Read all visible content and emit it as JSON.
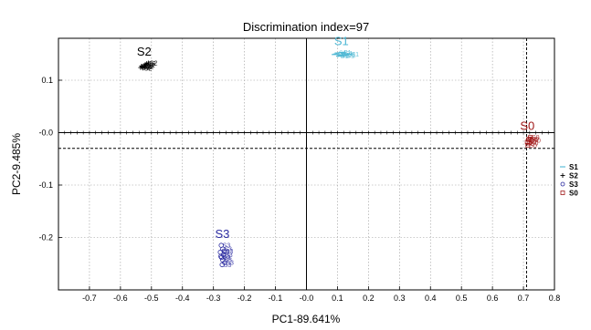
{
  "chart_data": {
    "type": "scatter",
    "title": "Discrimination index=97",
    "xlabel": "PC1-89.641%",
    "ylabel": "PC2-9.485%",
    "xlim": [
      -0.8,
      0.8
    ],
    "ylim": [
      -0.3,
      0.18
    ],
    "x_ticks": [
      "-0.7",
      "-0.6",
      "-0.5",
      "-0.4",
      "-0.3",
      "-0.2",
      "-0.1",
      "-0.0",
      "0.1",
      "0.2",
      "0.3",
      "0.4",
      "0.5",
      "0.6",
      "0.7",
      "0.8"
    ],
    "x_tick_values": [
      -0.7,
      -0.6,
      -0.5,
      -0.4,
      -0.3,
      -0.2,
      -0.1,
      0.0,
      0.1,
      0.2,
      0.3,
      0.4,
      0.5,
      0.6,
      0.7,
      0.8
    ],
    "y_ticks": [
      "0.1",
      "-0.0",
      "-0.1",
      "-0.2"
    ],
    "y_tick_values": [
      0.1,
      0.0,
      -0.1,
      -0.2
    ],
    "grid": true,
    "legend_position": "right",
    "reference_lines": {
      "x": 0.71,
      "y": -0.03
    },
    "series": [
      {
        "name": "S1",
        "marker": "-",
        "label": "S1",
        "color": "#4fb8d4",
        "points": [
          [
            0.09,
            0.149
          ],
          [
            0.1,
            0.152
          ],
          [
            0.11,
            0.148
          ],
          [
            0.12,
            0.151
          ],
          [
            0.13,
            0.149
          ],
          [
            0.105,
            0.146
          ],
          [
            0.115,
            0.153
          ],
          [
            0.095,
            0.15
          ],
          [
            0.125,
            0.147
          ],
          [
            0.14,
            0.15
          ]
        ]
      },
      {
        "name": "S2",
        "marker": "+",
        "label": "S2",
        "color": "#000000",
        "points": [
          [
            -0.535,
            0.124
          ],
          [
            -0.53,
            0.126
          ],
          [
            -0.525,
            0.128
          ],
          [
            -0.52,
            0.13
          ],
          [
            -0.515,
            0.132
          ],
          [
            -0.528,
            0.123
          ],
          [
            -0.518,
            0.129
          ],
          [
            -0.51,
            0.133
          ],
          [
            -0.532,
            0.127
          ],
          [
            -0.522,
            0.125
          ]
        ]
      },
      {
        "name": "S3",
        "marker": "o",
        "label": "S3",
        "color": "#2a2aa0",
        "points": [
          [
            -0.275,
            -0.215
          ],
          [
            -0.27,
            -0.222
          ],
          [
            -0.278,
            -0.228
          ],
          [
            -0.268,
            -0.233
          ],
          [
            -0.274,
            -0.238
          ],
          [
            -0.27,
            -0.243
          ],
          [
            -0.264,
            -0.248
          ],
          [
            -0.276,
            -0.236
          ],
          [
            -0.266,
            -0.226
          ],
          [
            -0.272,
            -0.252
          ]
        ]
      },
      {
        "name": "S0",
        "marker": "s",
        "label": "S0",
        "color": "#a01818",
        "points": [
          [
            0.712,
            -0.018
          ],
          [
            0.72,
            -0.012
          ],
          [
            0.718,
            -0.02
          ],
          [
            0.726,
            -0.015
          ],
          [
            0.714,
            -0.024
          ],
          [
            0.722,
            -0.009
          ],
          [
            0.716,
            -0.013
          ]
        ]
      }
    ]
  }
}
